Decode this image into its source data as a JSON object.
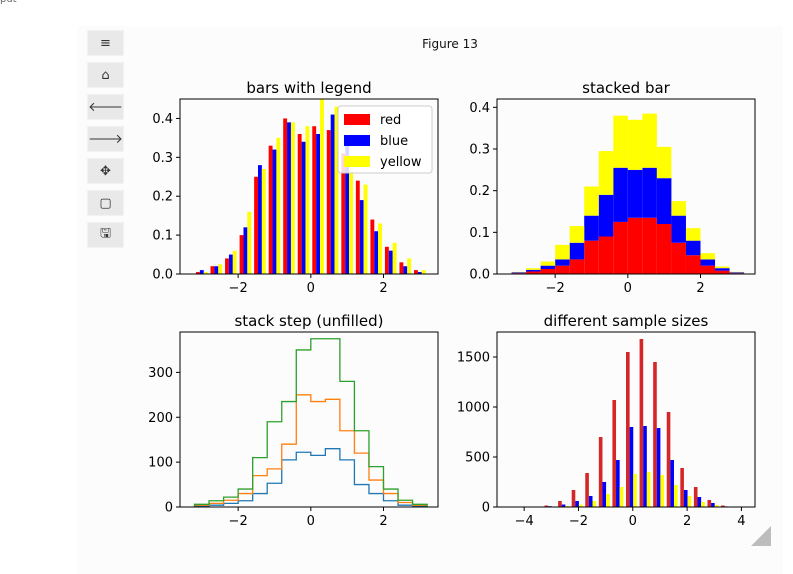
{
  "window": {
    "corner_label": "put"
  },
  "figure": {
    "title": "Figure 13"
  },
  "toolbar": {
    "buttons": [
      {
        "name": "menu-icon",
        "glyph": "≡"
      },
      {
        "name": "home-icon",
        "glyph": "⌂"
      },
      {
        "name": "back-arrow-icon",
        "glyph": "🡐"
      },
      {
        "name": "forward-arrow-icon",
        "glyph": "🡒"
      },
      {
        "name": "pan-move-icon",
        "glyph": "✥"
      },
      {
        "name": "zoom-rect-icon",
        "glyph": "▢"
      },
      {
        "name": "save-icon",
        "glyph": "🖫"
      }
    ]
  },
  "colors": {
    "red": "#ff0000",
    "blue": "#0000ff",
    "yellow": "#ffff00",
    "c0": "#1f77b4",
    "c1": "#ff7f0e",
    "c2": "#2ca02c",
    "c_red": "#d62728"
  },
  "chart_data": [
    {
      "id": "bars",
      "type": "bar",
      "title": "bars with legend",
      "bin_edges": [
        -3.2,
        -2.8,
        -2.4,
        -2.0,
        -1.6,
        -1.2,
        -0.8,
        -0.4,
        0.0,
        0.4,
        0.8,
        1.2,
        1.6,
        2.0,
        2.4,
        2.8,
        3.2
      ],
      "xlim": [
        -3.6,
        3.5
      ],
      "ylim": [
        0,
        0.45
      ],
      "xticks": [
        -2,
        0,
        2
      ],
      "yticks": [
        0.0,
        0.1,
        0.2,
        0.3,
        0.4
      ],
      "xtick_labels": [
        "−2",
        "0",
        "2"
      ],
      "ytick_labels": [
        "0.0",
        "0.1",
        "0.2",
        "0.3",
        "0.4"
      ],
      "series": [
        {
          "name": "red",
          "color": "#ff0000",
          "values": [
            0.005,
            0.02,
            0.04,
            0.1,
            0.25,
            0.33,
            0.4,
            0.36,
            0.38,
            0.37,
            0.31,
            0.24,
            0.14,
            0.07,
            0.03,
            0.01
          ]
        },
        {
          "name": "blue",
          "color": "#0000ff",
          "values": [
            0.01,
            0.02,
            0.05,
            0.12,
            0.28,
            0.32,
            0.39,
            0.34,
            0.36,
            0.41,
            0.35,
            0.19,
            0.11,
            0.06,
            0.02,
            0.005
          ]
        },
        {
          "name": "yellow",
          "color": "#ffff00",
          "values": [
            0.005,
            0.025,
            0.06,
            0.16,
            0.27,
            0.35,
            0.39,
            0.38,
            0.45,
            0.43,
            0.27,
            0.23,
            0.13,
            0.08,
            0.04,
            0.01
          ]
        }
      ],
      "legend": [
        "red",
        "blue",
        "yellow"
      ],
      "legend_loc": "upper right"
    },
    {
      "id": "stacked",
      "type": "bar",
      "title": "stacked bar",
      "bin_edges": [
        -3.2,
        -2.8,
        -2.4,
        -2.0,
        -1.6,
        -1.2,
        -0.8,
        -0.4,
        0.0,
        0.4,
        0.8,
        1.2,
        1.6,
        2.0,
        2.4,
        2.8,
        3.2
      ],
      "xlim": [
        -3.6,
        3.5
      ],
      "ylim": [
        0,
        0.42
      ],
      "xticks": [
        -2,
        0,
        2
      ],
      "yticks": [
        0.0,
        0.1,
        0.2,
        0.3,
        0.4
      ],
      "xtick_labels": [
        "−2",
        "0",
        "2"
      ],
      "ytick_labels": [
        "0.0",
        "0.1",
        "0.2",
        "0.3",
        "0.4"
      ],
      "series": [
        {
          "name": "red",
          "color": "#ff0000",
          "values": [
            0.002,
            0.006,
            0.012,
            0.02,
            0.035,
            0.08,
            0.09,
            0.125,
            0.135,
            0.135,
            0.12,
            0.075,
            0.045,
            0.02,
            0.008,
            0.002
          ]
        },
        {
          "name": "blue",
          "color": "#0000ff",
          "values": [
            0.002,
            0.004,
            0.008,
            0.015,
            0.04,
            0.06,
            0.1,
            0.13,
            0.115,
            0.12,
            0.11,
            0.065,
            0.035,
            0.015,
            0.006,
            0.002
          ]
        },
        {
          "name": "yellow",
          "color": "#ffff00",
          "values": [
            0.001,
            0.004,
            0.01,
            0.035,
            0.04,
            0.07,
            0.105,
            0.125,
            0.12,
            0.13,
            0.075,
            0.035,
            0.03,
            0.015,
            0.004,
            0.001
          ]
        }
      ]
    },
    {
      "id": "steps",
      "type": "line",
      "title": "stack step (unfilled)",
      "bin_edges": [
        -3.2,
        -2.8,
        -2.4,
        -2.0,
        -1.6,
        -1.2,
        -0.8,
        -0.4,
        0.0,
        0.4,
        0.8,
        1.2,
        1.6,
        2.0,
        2.4,
        2.8,
        3.2
      ],
      "xlim": [
        -3.6,
        3.5
      ],
      "ylim": [
        0,
        390
      ],
      "xticks": [
        -2,
        0,
        2
      ],
      "yticks": [
        0,
        100,
        200,
        300
      ],
      "xtick_labels": [
        "−2",
        "0",
        "2"
      ],
      "ytick_labels": [
        "0",
        "100",
        "200",
        "300"
      ],
      "series": [
        {
          "name": "c0",
          "color": "#1f77b4",
          "values": [
            2,
            4,
            8,
            14,
            30,
            53,
            105,
            122,
            115,
            130,
            105,
            50,
            30,
            14,
            4,
            2
          ]
        },
        {
          "name": "c1",
          "color": "#ff7f0e",
          "values": [
            4,
            8,
            15,
            30,
            70,
            85,
            140,
            250,
            235,
            240,
            170,
            120,
            60,
            30,
            10,
            4
          ]
        },
        {
          "name": "c2",
          "color": "#2ca02c",
          "values": [
            6,
            14,
            22,
            40,
            110,
            190,
            235,
            350,
            375,
            375,
            280,
            170,
            90,
            40,
            15,
            6
          ]
        }
      ]
    },
    {
      "id": "sizes",
      "type": "bar",
      "title": "different sample sizes",
      "bin_edges": [
        -3.8,
        -3.3,
        -2.8,
        -2.3,
        -1.8,
        -1.3,
        -0.8,
        -0.3,
        0.2,
        0.7,
        1.2,
        1.7,
        2.2,
        2.7,
        3.2,
        3.7
      ],
      "xlim": [
        -5,
        4.5
      ],
      "ylim": [
        0,
        1750
      ],
      "xticks": [
        -4,
        -2,
        0,
        2,
        4
      ],
      "yticks": [
        0,
        500,
        1000,
        1500
      ],
      "xtick_labels": [
        "−4",
        "−2",
        "0",
        "2",
        "4"
      ],
      "ytick_labels": [
        "0",
        "500",
        "1000",
        "1500"
      ],
      "series": [
        {
          "name": "red",
          "color": "#d62728",
          "values": [
            5,
            15,
            60,
            170,
            340,
            700,
            1070,
            1550,
            1680,
            1450,
            950,
            390,
            200,
            70,
            15
          ]
        },
        {
          "name": "blue",
          "color": "#0000ff",
          "values": [
            2,
            8,
            25,
            60,
            110,
            250,
            470,
            800,
            810,
            790,
            470,
            170,
            100,
            40,
            6
          ]
        },
        {
          "name": "yellow",
          "color": "#ffff00",
          "values": [
            1,
            4,
            10,
            25,
            60,
            130,
            200,
            330,
            350,
            320,
            220,
            110,
            50,
            20,
            4
          ]
        }
      ]
    }
  ]
}
